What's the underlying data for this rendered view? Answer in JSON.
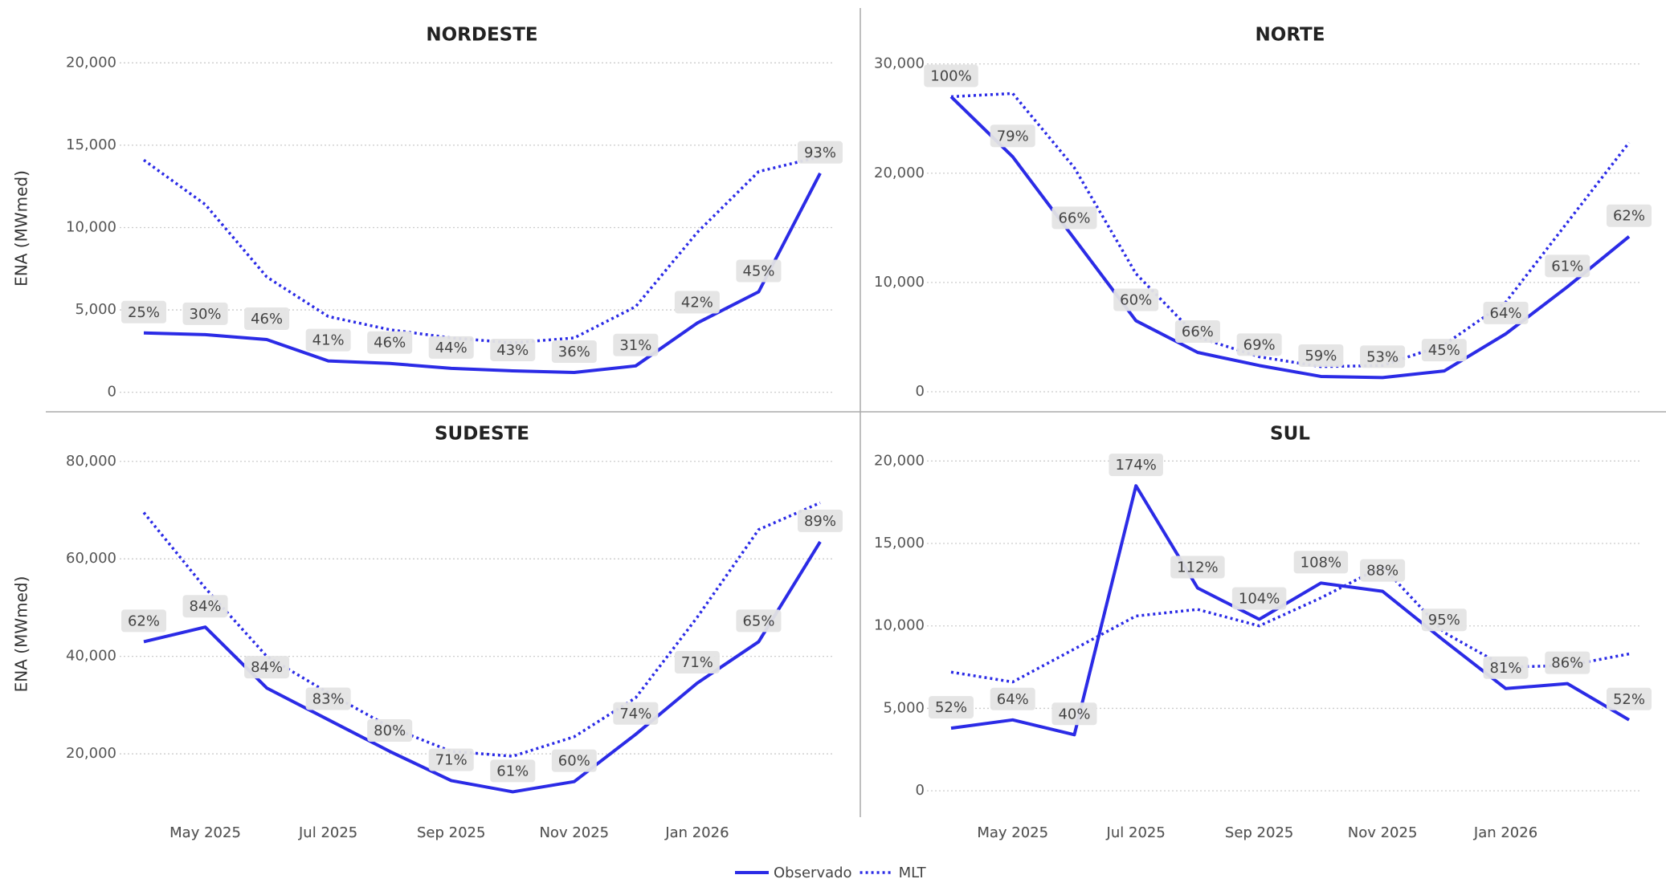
{
  "chart_data": [
    {
      "type": "line",
      "title": "NORDESTE",
      "ylabel": "ENA (MWmed)",
      "x": [
        "2025-04",
        "2025-05",
        "2025-06",
        "2025-07",
        "2025-08",
        "2025-09",
        "2025-10",
        "2025-11",
        "2025-12",
        "2026-01",
        "2026-02",
        "2026-03"
      ],
      "xticks": [
        {
          "value": "2025-05",
          "label": "May 2025"
        },
        {
          "value": "2025-07",
          "label": "Jul 2025"
        },
        {
          "value": "2025-09",
          "label": "Sep 2025"
        },
        {
          "value": "2025-11",
          "label": "Nov 2025"
        },
        {
          "value": "2026-01",
          "label": "Jan 2026"
        }
      ],
      "ylim": [
        -700,
        20600
      ],
      "yticks": [
        0,
        {
          "value": 5000,
          "label": "5,000"
        },
        {
          "value": 10000,
          "label": "10,000"
        },
        {
          "value": 15000,
          "label": "15,000"
        },
        {
          "value": 20000,
          "label": "20,000"
        }
      ],
      "grid": true,
      "series": [
        {
          "name": "Observado",
          "color": "#2b2be6",
          "dash": false,
          "values": [
            3600,
            3500,
            3200,
            1900,
            1750,
            1450,
            1300,
            1200,
            1600,
            4200,
            6100,
            13300
          ]
        },
        {
          "name": "MLT",
          "color": "#2b2be6",
          "dash": true,
          "values": [
            14100,
            11400,
            7000,
            4600,
            3800,
            3300,
            3000,
            3300,
            5200,
            9700,
            13400,
            14300
          ]
        }
      ],
      "ratio": {
        "values": [
          25,
          30,
          46,
          41,
          46,
          44,
          43,
          36,
          31,
          42,
          45,
          93
        ],
        "value_labels": [
          "25%",
          "30%",
          "46%",
          "41%",
          "46%",
          "44%",
          "43%",
          "36%",
          "31%",
          "42%",
          "45%",
          "93%"
        ]
      }
    },
    {
      "type": "line",
      "title": "NORTE",
      "x": [
        "2025-04",
        "2025-05",
        "2025-06",
        "2025-07",
        "2025-08",
        "2025-09",
        "2025-10",
        "2025-11",
        "2025-12",
        "2026-01",
        "2026-02",
        "2026-03"
      ],
      "xticks": [
        {
          "value": "2025-05",
          "label": "May 2025"
        },
        {
          "value": "2025-07",
          "label": "Jul 2025"
        },
        {
          "value": "2025-09",
          "label": "Sep 2025"
        },
        {
          "value": "2025-11",
          "label": "Nov 2025"
        },
        {
          "value": "2026-01",
          "label": "Jan 2026"
        }
      ],
      "ylim": [
        -1100,
        31000
      ],
      "yticks": [
        0,
        {
          "value": 10000,
          "label": "10,000"
        },
        {
          "value": 20000,
          "label": "20,000"
        },
        {
          "value": 30000,
          "label": "30,000"
        }
      ],
      "grid": true,
      "series": [
        {
          "color": "#2b2be6",
          "dash": false,
          "values": [
            27000,
            21500,
            14000,
            6500,
            3600,
            2400,
            1400,
            1300,
            1900,
            5300,
            9600,
            14200
          ]
        },
        {
          "color": "#2b2be6",
          "dash": true,
          "values": [
            27000,
            27300,
            20500,
            10800,
            5000,
            3200,
            2300,
            2400,
            4300,
            8200,
            15500,
            22800
          ]
        }
      ],
      "ratio": {
        "values": [
          100,
          79,
          66,
          60,
          66,
          69,
          59,
          53,
          45,
          64,
          61,
          62
        ],
        "value_labels": [
          "100%",
          "79%",
          "66%",
          "60%",
          "66%",
          "69%",
          "59%",
          "53%",
          "45%",
          "64%",
          "61%",
          "62%"
        ]
      }
    },
    {
      "type": "line",
      "title": "SUDESTE",
      "ylabel": "ENA (MWmed)",
      "x": [
        "2025-04",
        "2025-05",
        "2025-06",
        "2025-07",
        "2025-08",
        "2025-09",
        "2025-10",
        "2025-11",
        "2025-12",
        "2026-01",
        "2026-02",
        "2026-03"
      ],
      "xticks": [
        {
          "value": "2025-05",
          "label": "May 2025"
        },
        {
          "value": "2025-07",
          "label": "Jul 2025"
        },
        {
          "value": "2025-09",
          "label": "Sep 2025"
        },
        {
          "value": "2025-11",
          "label": "Nov 2025"
        },
        {
          "value": "2026-01",
          "label": "Jan 2026"
        }
      ],
      "ylim": [
        7000,
        82100
      ],
      "yticks": [
        {
          "value": 20000,
          "label": "20,000"
        },
        {
          "value": 40000,
          "label": "40,000"
        },
        {
          "value": 60000,
          "label": "60,000"
        },
        {
          "value": 80000,
          "label": "80,000"
        }
      ],
      "grid": true,
      "series": [
        {
          "color": "#2b2be6",
          "dash": false,
          "values": [
            43000,
            46000,
            33500,
            27000,
            20500,
            14500,
            12200,
            14300,
            24000,
            34500,
            43000,
            63500
          ]
        },
        {
          "color": "#2b2be6",
          "dash": true,
          "values": [
            69500,
            54000,
            40000,
            32500,
            25500,
            20500,
            19500,
            23500,
            31500,
            48000,
            66000,
            71500
          ]
        }
      ],
      "ratio": {
        "values": [
          62,
          84,
          84,
          83,
          80,
          71,
          61,
          60,
          74,
          71,
          65,
          89
        ],
        "value_labels": [
          "62%",
          "84%",
          "84%",
          "83%",
          "80%",
          "71%",
          "61%",
          "60%",
          "74%",
          "71%",
          "65%",
          "89%"
        ]
      }
    },
    {
      "type": "line",
      "title": "SUL",
      "x": [
        "2025-04",
        "2025-05",
        "2025-06",
        "2025-07",
        "2025-08",
        "2025-09",
        "2025-10",
        "2025-11",
        "2025-12",
        "2026-01",
        "2026-02",
        "2026-03"
      ],
      "xticks": [
        {
          "value": "2025-05",
          "label": "May 2025"
        },
        {
          "value": "2025-07",
          "label": "Jul 2025"
        },
        {
          "value": "2025-09",
          "label": "Sep 2025"
        },
        {
          "value": "2025-11",
          "label": "Nov 2025"
        },
        {
          "value": "2026-01",
          "label": "Jan 2026"
        }
      ],
      "ylim": [
        -1600,
        20600
      ],
      "yticks": [
        0,
        {
          "value": 5000,
          "label": "5,000"
        },
        {
          "value": 10000,
          "label": "10,000"
        },
        {
          "value": 15000,
          "label": "15,000"
        },
        {
          "value": 20000,
          "label": "20,000"
        }
      ],
      "grid": true,
      "series": [
        {
          "color": "#2b2be6",
          "dash": false,
          "values": [
            3800,
            4300,
            3400,
            18500,
            12300,
            10400,
            12600,
            12100,
            9100,
            6200,
            6500,
            4300
          ]
        },
        {
          "color": "#2b2be6",
          "dash": true,
          "values": [
            7200,
            6600,
            8600,
            10600,
            11000,
            10000,
            11700,
            13600,
            9600,
            7500,
            7600,
            8300
          ]
        }
      ],
      "ratio": {
        "values": [
          52,
          64,
          40,
          174,
          112,
          104,
          108,
          88,
          95,
          81,
          86,
          52
        ],
        "value_labels": [
          "52%",
          "64%",
          "40%",
          "174%",
          "112%",
          "104%",
          "108%",
          "88%",
          "95%",
          "81%",
          "86%",
          "52%"
        ]
      }
    }
  ]
}
